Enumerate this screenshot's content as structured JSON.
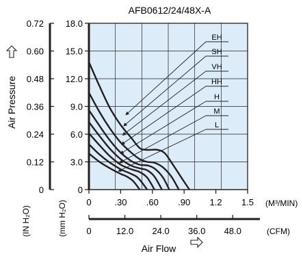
{
  "chart_data": {
    "type": "line",
    "title": "AFB0612/24/48X-A",
    "xlabel": "Air Flow",
    "ylabel": "Air Pressure",
    "x_unit_primary": "(M³/MIN)",
    "x_unit_secondary": "(CFM)",
    "y_unit_left": "(IN H₂O)",
    "y_unit_right": "(mm H₂O)",
    "x_ticks_primary": [
      "0",
      ".30",
      ".60",
      ".90",
      "1.2",
      "1.5"
    ],
    "x_ticks_secondary": [
      "0",
      "12.0",
      "24.0",
      "36.0",
      "48.0"
    ],
    "y_ticks_left": [
      "0",
      "0.12",
      "0.24",
      "0.36",
      "0.48",
      "0.60",
      "0.72"
    ],
    "y_ticks_right": [
      "0",
      "3.0",
      "6.0",
      "9.0",
      "12.0",
      "15.0",
      "18.0"
    ],
    "xlim": [
      0,
      1.5
    ],
    "ylim": [
      0,
      18
    ],
    "grid": true,
    "background_color": "#dcecf8",
    "line_color": "#231f20",
    "series": [
      {
        "name": "EH",
        "points": [
          [
            0,
            13.8
          ],
          [
            0.1,
            11.2
          ],
          [
            0.2,
            8.8
          ],
          [
            0.3,
            7.0
          ],
          [
            0.4,
            5.6
          ],
          [
            0.48,
            4.5
          ],
          [
            0.55,
            4.3
          ],
          [
            0.65,
            4.3
          ],
          [
            0.72,
            3.9
          ],
          [
            0.8,
            2.6
          ],
          [
            0.88,
            1.2
          ],
          [
            0.95,
            0
          ]
        ],
        "label_at": [
          0.35,
          8.1
        ]
      },
      {
        "name": "SH",
        "points": [
          [
            0,
            10.5
          ],
          [
            0.1,
            8.4
          ],
          [
            0.2,
            6.6
          ],
          [
            0.3,
            5.1
          ],
          [
            0.4,
            4.0
          ],
          [
            0.48,
            3.3
          ],
          [
            0.55,
            3.0
          ],
          [
            0.62,
            2.9
          ],
          [
            0.7,
            2.4
          ],
          [
            0.78,
            1.4
          ],
          [
            0.85,
            0
          ]
        ],
        "label_at": [
          0.33,
          6.9
        ]
      },
      {
        "name": "VH",
        "points": [
          [
            0,
            8.6
          ],
          [
            0.1,
            6.9
          ],
          [
            0.2,
            5.3
          ],
          [
            0.3,
            4.0
          ],
          [
            0.4,
            3.1
          ],
          [
            0.48,
            2.7
          ],
          [
            0.56,
            2.6
          ],
          [
            0.63,
            2.2
          ],
          [
            0.7,
            1.3
          ],
          [
            0.76,
            0
          ]
        ],
        "label_at": [
          0.32,
          5.9
        ]
      },
      {
        "name": "HH",
        "points": [
          [
            0,
            7.3
          ],
          [
            0.1,
            5.8
          ],
          [
            0.2,
            4.4
          ],
          [
            0.3,
            3.3
          ],
          [
            0.4,
            2.6
          ],
          [
            0.48,
            2.3
          ],
          [
            0.55,
            2.1
          ],
          [
            0.62,
            1.4
          ],
          [
            0.69,
            0
          ]
        ],
        "label_at": [
          0.31,
          4.9
        ]
      },
      {
        "name": "H",
        "points": [
          [
            0,
            6.1
          ],
          [
            0.1,
            4.8
          ],
          [
            0.2,
            3.6
          ],
          [
            0.3,
            2.7
          ],
          [
            0.4,
            2.2
          ],
          [
            0.48,
            1.9
          ],
          [
            0.55,
            1.3
          ],
          [
            0.62,
            0
          ]
        ],
        "label_at": [
          0.3,
          3.9
        ]
      },
      {
        "name": "M",
        "points": [
          [
            0,
            4.9
          ],
          [
            0.1,
            3.8
          ],
          [
            0.2,
            2.9
          ],
          [
            0.3,
            2.2
          ],
          [
            0.38,
            1.8
          ],
          [
            0.45,
            1.4
          ],
          [
            0.5,
            0.8
          ],
          [
            0.55,
            0
          ]
        ],
        "label_at": [
          0.29,
          2.9
        ]
      },
      {
        "name": "L",
        "points": [
          [
            0,
            3.9
          ],
          [
            0.1,
            3.0
          ],
          [
            0.2,
            2.3
          ],
          [
            0.3,
            1.7
          ],
          [
            0.36,
            1.4
          ],
          [
            0.42,
            0.9
          ],
          [
            0.48,
            0
          ]
        ],
        "label_at": [
          0.28,
          2.0
        ]
      }
    ]
  }
}
